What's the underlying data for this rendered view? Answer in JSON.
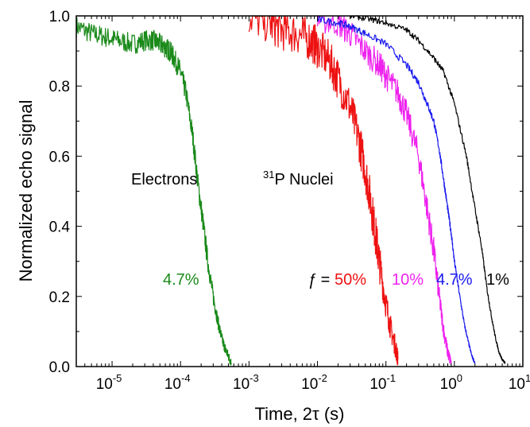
{
  "chart_data": {
    "type": "line",
    "title": "",
    "xlabel": "Time, 2τ (s)",
    "ylabel": "Normalized echo signal",
    "xscale": "log",
    "xlim": [
      3e-06,
      10
    ],
    "ylim": [
      0,
      1.0
    ],
    "x_ticks": [
      {
        "value": 1e-05,
        "base": "10",
        "exp": "-5"
      },
      {
        "value": 0.0001,
        "base": "10",
        "exp": "-4"
      },
      {
        "value": 0.001,
        "base": "10",
        "exp": "-3"
      },
      {
        "value": 0.01,
        "base": "10",
        "exp": "-2"
      },
      {
        "value": 0.1,
        "base": "10",
        "exp": "-1"
      },
      {
        "value": 1,
        "base": "10",
        "exp": "0"
      },
      {
        "value": 10,
        "base": "10",
        "exp": "1"
      }
    ],
    "y_ticks": [
      "0.0",
      "0.2",
      "0.4",
      "0.6",
      "0.8",
      "1.0"
    ],
    "grid": false,
    "series": [
      {
        "label": "4.7%",
        "color": "#1a8a1a",
        "x": [
          3e-06,
          5e-06,
          8e-06,
          1.2e-05,
          2e-05,
          3e-05,
          4e-05,
          5e-05,
          6e-05,
          7e-05,
          8e-05,
          0.0001,
          0.00012,
          0.00015,
          0.00018,
          0.00021,
          0.00025,
          0.0003,
          0.00035,
          0.0004,
          0.00045,
          0.0005,
          0.00055
        ],
        "y": [
          0.97,
          0.95,
          0.94,
          0.93,
          0.92,
          0.93,
          0.93,
          0.92,
          0.91,
          0.9,
          0.88,
          0.84,
          0.78,
          0.66,
          0.52,
          0.42,
          0.3,
          0.2,
          0.13,
          0.08,
          0.05,
          0.03,
          0.01
        ],
        "noise": 0.03
      },
      {
        "label": "50%",
        "color": "#ee1111",
        "x": [
          0.001,
          0.002,
          0.003,
          0.005,
          0.008,
          0.01,
          0.015,
          0.02,
          0.03,
          0.04,
          0.05,
          0.06,
          0.07,
          0.08,
          0.1,
          0.12,
          0.14,
          0.15
        ],
        "y": [
          1.0,
          0.98,
          0.96,
          0.95,
          0.93,
          0.91,
          0.87,
          0.82,
          0.74,
          0.65,
          0.56,
          0.47,
          0.38,
          0.3,
          0.18,
          0.1,
          0.05,
          0.02
        ],
        "noise": 0.06
      },
      {
        "label": "10%",
        "color": "#ee22ee",
        "x": [
          0.01,
          0.02,
          0.03,
          0.05,
          0.08,
          0.1,
          0.15,
          0.2,
          0.3,
          0.4,
          0.5,
          0.6,
          0.7,
          0.8,
          0.9
        ],
        "y": [
          0.99,
          0.98,
          0.95,
          0.9,
          0.86,
          0.83,
          0.78,
          0.72,
          0.6,
          0.45,
          0.33,
          0.2,
          0.1,
          0.04,
          0.01
        ],
        "noise": 0.04
      },
      {
        "label": "4.7%",
        "color": "#1a1aee",
        "x": [
          0.01,
          0.02,
          0.03,
          0.05,
          0.1,
          0.2,
          0.3,
          0.4,
          0.5,
          0.6,
          0.7,
          0.8,
          0.9,
          1,
          1.2,
          1.4,
          1.6,
          1.8,
          2.0
        ],
        "y": [
          0.99,
          0.98,
          0.97,
          0.95,
          0.92,
          0.86,
          0.81,
          0.75,
          0.7,
          0.62,
          0.53,
          0.45,
          0.38,
          0.3,
          0.2,
          0.12,
          0.07,
          0.03,
          0.01
        ],
        "noise": 0.01
      },
      {
        "label": "1%",
        "color": "#000000",
        "x": [
          0.03,
          0.06,
          0.1,
          0.2,
          0.3,
          0.5,
          0.7,
          1,
          1.5,
          2,
          2.5,
          3,
          3.5,
          4,
          4.5,
          5,
          5.5
        ],
        "y": [
          1.0,
          0.99,
          0.98,
          0.96,
          0.93,
          0.88,
          0.84,
          0.75,
          0.6,
          0.45,
          0.34,
          0.22,
          0.14,
          0.08,
          0.04,
          0.02,
          0.01
        ],
        "noise": 0.008
      }
    ],
    "annotations": {
      "electrons": "Electrons",
      "nuclei_sup": "31",
      "nuclei": "P Nuclei",
      "f_symbol": "ƒ",
      "f_eq": " = ",
      "green_label": "4.7%",
      "red_label": "50%",
      "magenta_label": "10%",
      "blue_label": "4.7%",
      "black_label": "1%"
    }
  }
}
